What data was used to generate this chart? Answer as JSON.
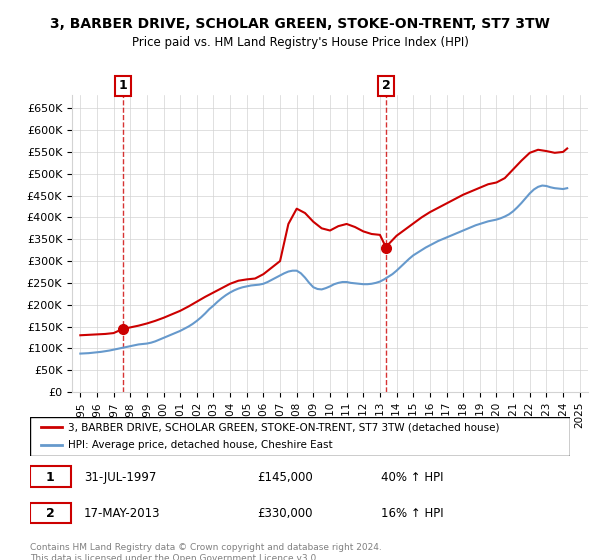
{
  "title": "3, BARBER DRIVE, SCHOLAR GREEN, STOKE-ON-TRENT, ST7 3TW",
  "subtitle": "Price paid vs. HM Land Registry's House Price Index (HPI)",
  "ylabel_ticks": [
    0,
    50000,
    100000,
    150000,
    200000,
    250000,
    300000,
    350000,
    400000,
    450000,
    500000,
    550000,
    600000,
    650000
  ],
  "ylabel_labels": [
    "£0",
    "£50K",
    "£100K",
    "£150K",
    "£200K",
    "£250K",
    "£300K",
    "£350K",
    "£400K",
    "£450K",
    "£500K",
    "£550K",
    "£600K",
    "£650K"
  ],
  "xlim": [
    1994.5,
    2025.5
  ],
  "ylim": [
    0,
    680000
  ],
  "legend_line1": "3, BARBER DRIVE, SCHOLAR GREEN, STOKE-ON-TRENT, ST7 3TW (detached house)",
  "legend_line2": "HPI: Average price, detached house, Cheshire East",
  "transaction1_date": "31-JUL-1997",
  "transaction1_price": 145000,
  "transaction1_pct": "40% ↑ HPI",
  "transaction2_date": "17-MAY-2013",
  "transaction2_price": 330000,
  "transaction2_pct": "16% ↑ HPI",
  "footnote": "Contains HM Land Registry data © Crown copyright and database right 2024.\nThis data is licensed under the Open Government Licence v3.0.",
  "red_color": "#cc0000",
  "blue_color": "#6699cc",
  "hpi_years": [
    1995,
    1995.25,
    1995.5,
    1995.75,
    1996,
    1996.25,
    1996.5,
    1996.75,
    1997,
    1997.25,
    1997.5,
    1997.75,
    1998,
    1998.25,
    1998.5,
    1998.75,
    1999,
    1999.25,
    1999.5,
    1999.75,
    2000,
    2000.25,
    2000.5,
    2000.75,
    2001,
    2001.25,
    2001.5,
    2001.75,
    2002,
    2002.25,
    2002.5,
    2002.75,
    2003,
    2003.25,
    2003.5,
    2003.75,
    2004,
    2004.25,
    2004.5,
    2004.75,
    2005,
    2005.25,
    2005.5,
    2005.75,
    2006,
    2006.25,
    2006.5,
    2006.75,
    2007,
    2007.25,
    2007.5,
    2007.75,
    2008,
    2008.25,
    2008.5,
    2008.75,
    2009,
    2009.25,
    2009.5,
    2009.75,
    2010,
    2010.25,
    2010.5,
    2010.75,
    2011,
    2011.25,
    2011.5,
    2011.75,
    2012,
    2012.25,
    2012.5,
    2012.75,
    2013,
    2013.25,
    2013.5,
    2013.75,
    2014,
    2014.25,
    2014.5,
    2014.75,
    2015,
    2015.25,
    2015.5,
    2015.75,
    2016,
    2016.25,
    2016.5,
    2016.75,
    2017,
    2017.25,
    2017.5,
    2017.75,
    2018,
    2018.25,
    2018.5,
    2018.75,
    2019,
    2019.25,
    2019.5,
    2019.75,
    2020,
    2020.25,
    2020.5,
    2020.75,
    2021,
    2021.25,
    2021.5,
    2021.75,
    2022,
    2022.25,
    2022.5,
    2022.75,
    2023,
    2023.25,
    2023.5,
    2023.75,
    2024,
    2024.25
  ],
  "hpi_values": [
    88000,
    88500,
    89000,
    90000,
    91000,
    92000,
    93500,
    95000,
    97000,
    99000,
    101000,
    103000,
    105000,
    107000,
    109000,
    110000,
    111000,
    113000,
    116000,
    120000,
    124000,
    128000,
    132000,
    136000,
    140000,
    145000,
    150000,
    156000,
    163000,
    171000,
    180000,
    190000,
    198000,
    207000,
    215000,
    222000,
    228000,
    233000,
    237000,
    240000,
    242000,
    244000,
    245000,
    246000,
    248000,
    252000,
    257000,
    262000,
    267000,
    272000,
    276000,
    278000,
    278000,
    272000,
    262000,
    250000,
    240000,
    236000,
    235000,
    238000,
    242000,
    247000,
    250000,
    252000,
    252000,
    250000,
    249000,
    248000,
    247000,
    247000,
    248000,
    250000,
    253000,
    258000,
    264000,
    270000,
    278000,
    287000,
    296000,
    305000,
    313000,
    319000,
    325000,
    331000,
    336000,
    341000,
    346000,
    350000,
    354000,
    358000,
    362000,
    366000,
    370000,
    374000,
    378000,
    382000,
    385000,
    388000,
    391000,
    393000,
    395000,
    398000,
    402000,
    407000,
    414000,
    423000,
    433000,
    444000,
    455000,
    464000,
    470000,
    473000,
    472000,
    469000,
    467000,
    466000,
    465000,
    467000
  ],
  "prop_years": [
    1995.0,
    1995.5,
    1996.0,
    1996.5,
    1997.0,
    1997.58,
    1997.75,
    1998.0,
    1998.5,
    1999.0,
    1999.5,
    2000.0,
    2000.5,
    2001.0,
    2001.5,
    2002.0,
    2002.5,
    2003.0,
    2003.5,
    2004.0,
    2004.5,
    2005.0,
    2005.5,
    2006.0,
    2006.5,
    2007.0,
    2007.5,
    2008.0,
    2008.5,
    2009.0,
    2009.5,
    2010.0,
    2010.5,
    2011.0,
    2011.5,
    2012.0,
    2012.5,
    2013.0,
    2013.38,
    2013.5,
    2013.75,
    2014.0,
    2014.5,
    2015.0,
    2015.5,
    2016.0,
    2016.5,
    2017.0,
    2017.5,
    2018.0,
    2018.5,
    2019.0,
    2019.5,
    2020.0,
    2020.5,
    2021.0,
    2021.5,
    2022.0,
    2022.5,
    2023.0,
    2023.5,
    2024.0,
    2024.25
  ],
  "prop_values": [
    130000,
    131000,
    132000,
    133000,
    135000,
    145000,
    146000,
    148000,
    152000,
    157000,
    163000,
    170000,
    178000,
    186000,
    196000,
    207000,
    218000,
    228000,
    238000,
    248000,
    255000,
    258000,
    260000,
    270000,
    285000,
    300000,
    385000,
    420000,
    410000,
    390000,
    375000,
    370000,
    380000,
    385000,
    378000,
    368000,
    362000,
    360000,
    330000,
    338000,
    348000,
    358000,
    372000,
    386000,
    400000,
    412000,
    422000,
    432000,
    442000,
    452000,
    460000,
    468000,
    476000,
    480000,
    490000,
    510000,
    530000,
    548000,
    555000,
    552000,
    548000,
    550000,
    558000
  ],
  "transaction1_x": 1997.58,
  "transaction1_y": 145000,
  "transaction2_x": 2013.38,
  "transaction2_y": 330000,
  "vline1_x": 1997.58,
  "vline2_x": 2013.38
}
